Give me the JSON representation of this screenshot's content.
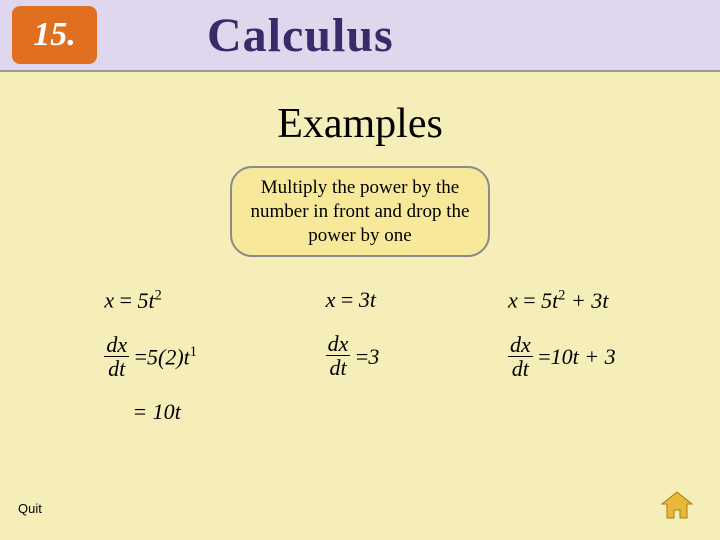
{
  "header": {
    "chapter_number": "15.",
    "title": "Calculus",
    "badge_bg": "#e07020",
    "header_bg": "#dfd7ed",
    "title_color": "#3a2a6a"
  },
  "main": {
    "title": "Examples",
    "instruction": "Multiply the power by the number in front and drop the power by one",
    "instruction_bg": "#f7e999",
    "instruction_border": "#8a8a8a"
  },
  "examples": [
    {
      "given_lhs": "x",
      "given_rhs_html": "5<i>t</i><sup>2</sup>",
      "deriv_rhs_html": "5(2)<i>t</i><sup>1</sup>",
      "simplified_html": "= 10<i>t</i>"
    },
    {
      "given_lhs": "x",
      "given_rhs_html": "3<i>t</i>",
      "deriv_rhs_html": "3",
      "simplified_html": ""
    },
    {
      "given_lhs": "x",
      "given_rhs_html": "5<i>t</i><sup>2</sup> + 3<i>t</i>",
      "deriv_rhs_html": "10<i>t</i> + 3",
      "simplified_html": ""
    }
  ],
  "controls": {
    "quit_label": "Quit"
  },
  "page_bg": "#f5eeb8",
  "nav_icon_color": "#e8b838"
}
